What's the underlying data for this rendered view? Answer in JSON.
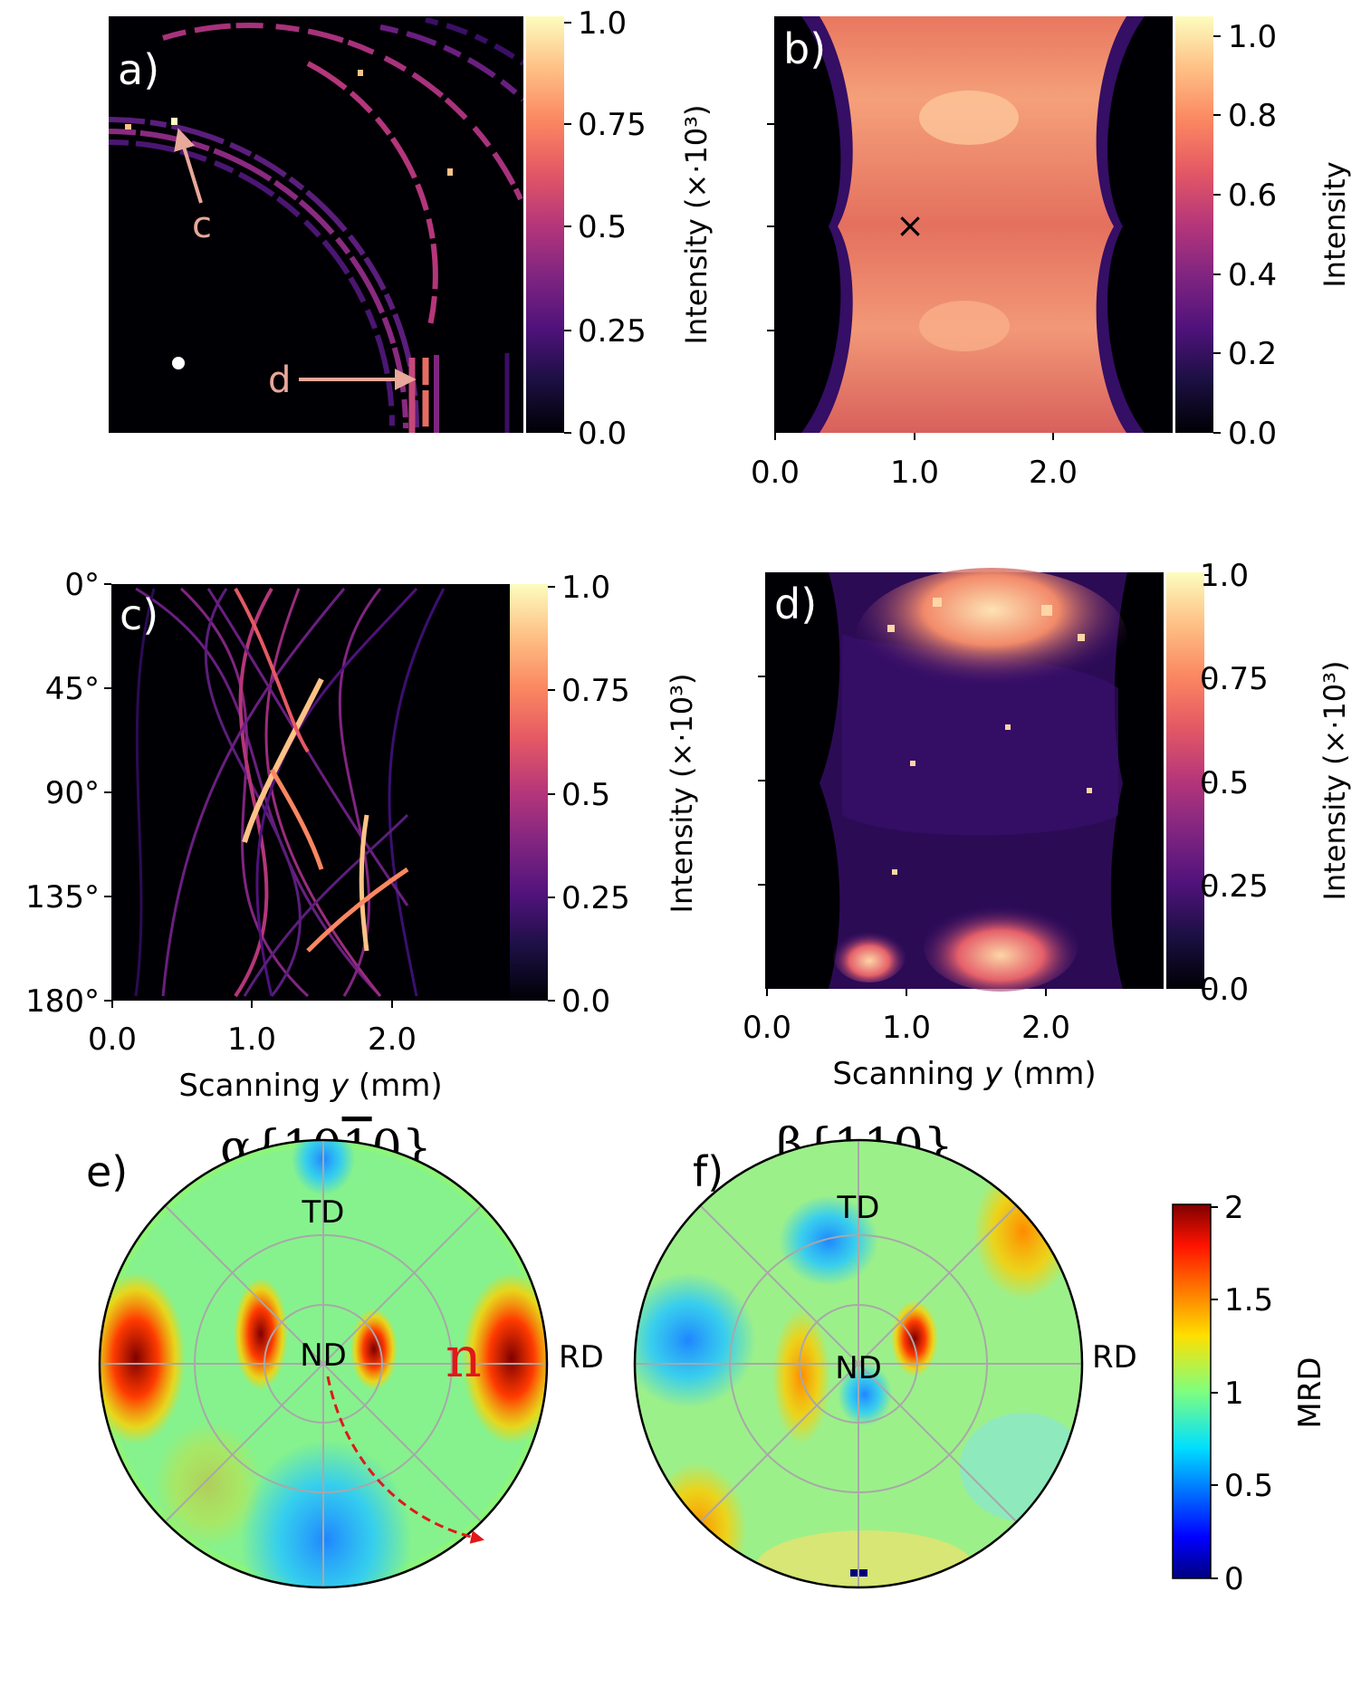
{
  "panels": {
    "a": {
      "label": "a)",
      "annotations": [
        "c",
        "d"
      ],
      "colorbar": {
        "label": "Intensity (×·10³)",
        "ticks": [
          "1.0",
          "0.75",
          "0.5",
          "0.25",
          "0.0"
        ],
        "cmap": "magma"
      }
    },
    "b": {
      "label": "b)",
      "marker": "×",
      "colorbar": {
        "label": "Intensity",
        "ticks": [
          "1.0",
          "0.8",
          "0.6",
          "0.4",
          "0.2",
          "0.0"
        ],
        "cmap": "magma"
      },
      "xticks": [
        "0.0",
        "1.0",
        "2.0"
      ]
    },
    "c": {
      "label": "c)",
      "yticks": [
        "0°",
        "45°",
        "90°",
        "135°",
        "180°"
      ],
      "xticks": [
        "0.0",
        "1.0",
        "2.0"
      ],
      "xlabel_pre": "Scanning ",
      "xlabel_var": "y",
      "xlabel_post": " (mm)",
      "colorbar": {
        "label": "Intensity (×·10³)",
        "ticks": [
          "1.0",
          "0.75",
          "0.5",
          "0.25",
          "0.0"
        ],
        "cmap": "magma"
      }
    },
    "d": {
      "label": "d)",
      "xticks": [
        "0.0",
        "1.0",
        "2.0"
      ],
      "xlabel_pre": "Scanning ",
      "xlabel_var": "y",
      "xlabel_post": " (mm)",
      "colorbar": {
        "label": "Intensity (×·10³)",
        "ticks": [
          "1.0",
          "0.75",
          "0.5",
          "0.25",
          "0.0"
        ],
        "cmap": "magma"
      }
    },
    "e": {
      "label": "e)",
      "title_pre": "α{10",
      "title_bar": "1",
      "title_post": "0}",
      "td": "TD",
      "rd": "RD",
      "nd": "ND",
      "n_label": "n"
    },
    "f": {
      "label": "f)",
      "title": "β{110}",
      "td": "TD",
      "rd": "RD",
      "nd": "ND"
    }
  },
  "mrd_colorbar": {
    "label": "MRD",
    "ticks": [
      "2",
      "1.5",
      "1",
      "0.5",
      "0"
    ],
    "cmap": "jet"
  },
  "colors": {
    "annotation_pink": "#e8a89a",
    "arrow_red": "#e01818",
    "n_red": "#e01818"
  }
}
